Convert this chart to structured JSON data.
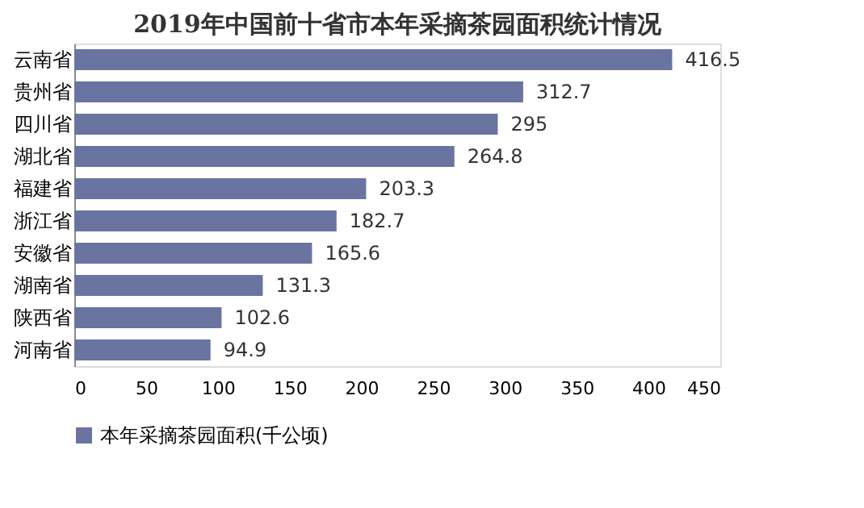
{
  "chart_data": {
    "type": "bar",
    "orientation": "horizontal",
    "title": "2019年中国前十省市本年采摘茶园面积统计情况",
    "categories": [
      "云南省",
      "贵州省",
      "四川省",
      "湖北省",
      "福建省",
      "浙江省",
      "安徽省",
      "湖南省",
      "陕西省",
      "河南省"
    ],
    "series": [
      {
        "name": "本年采摘茶园面积(千公顷)",
        "color": "#6a74a0",
        "values": [
          416.5,
          312.7,
          295,
          264.8,
          203.3,
          182.7,
          165.6,
          131.3,
          102.6,
          94.9
        ]
      }
    ],
    "xlim": [
      0,
      450
    ],
    "xticks": [
      0,
      50,
      100,
      150,
      200,
      250,
      300,
      350,
      400,
      450
    ],
    "data_labels": true,
    "grid": false,
    "legend": "bottom"
  }
}
